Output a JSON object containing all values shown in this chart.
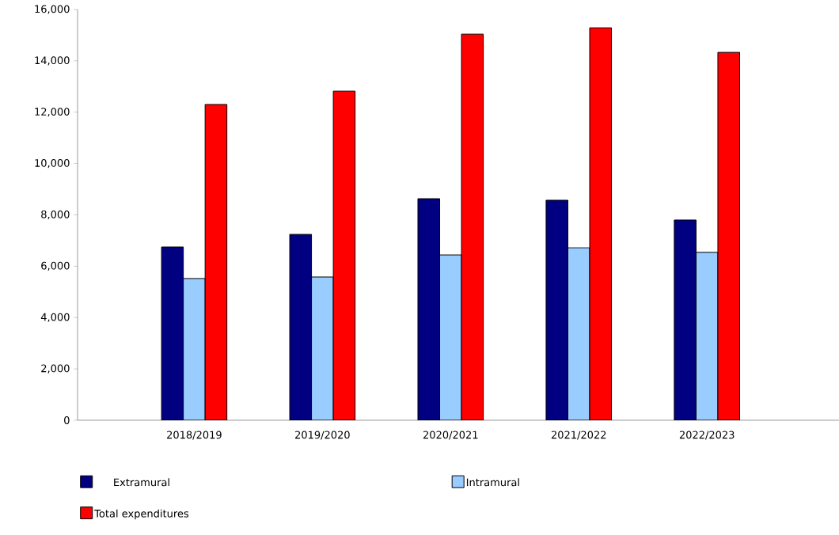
{
  "chart_data": {
    "type": "bar",
    "categories": [
      "2018/2019",
      "2019/2020",
      "2020/2021",
      "2021/2022",
      "2022/2023"
    ],
    "series": [
      {
        "name": "Extramural",
        "color": "#000080",
        "values": [
          6750,
          7240,
          8630,
          8570,
          7800
        ]
      },
      {
        "name": "Intramural",
        "color": "#99ccff",
        "values": [
          5520,
          5580,
          6440,
          6720,
          6540
        ]
      },
      {
        "name": "Total expenditures",
        "color": "#ff0000",
        "values": [
          12300,
          12820,
          15040,
          15290,
          14330
        ]
      }
    ],
    "ylim": [
      0,
      16000
    ],
    "yticks": [
      0,
      {
        "value": 2000,
        "label": "2,000"
      },
      {
        "value": 4000,
        "label": "4,000"
      },
      {
        "value": 6000,
        "label": "6,000"
      },
      {
        "value": 8000,
        "label": "8,000"
      },
      {
        "value": 10000,
        "label": "10,000"
      },
      {
        "value": 12000,
        "label": "12,000"
      },
      {
        "value": 14000,
        "label": "14,000"
      },
      {
        "value": 16000,
        "label": "16,000"
      }
    ],
    "grid": false,
    "legend": "bottom"
  }
}
